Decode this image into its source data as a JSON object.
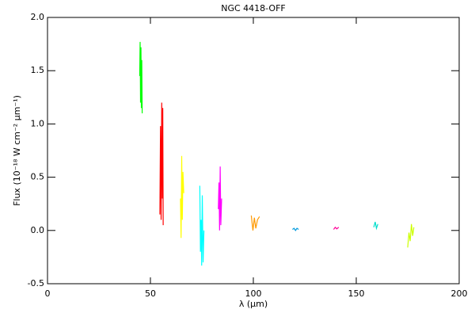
{
  "chart_data": {
    "type": "line",
    "title": "NGC 4418-OFF",
    "xlabel": "λ (μm)",
    "ylabel": "Flux (10⁻¹⁸ W cm⁻² μm⁻¹)",
    "xlim": [
      0,
      200
    ],
    "xticks": [
      0,
      50,
      100,
      150,
      200
    ],
    "ylim": [
      -0.5,
      2.0
    ],
    "yticks": [
      {
        "value": 2.0,
        "label": "2.0"
      },
      1.5,
      {
        "value": 1.0,
        "label": "1.0"
      },
      0.5,
      {
        "value": 0.0,
        "label": "0.0"
      },
      -0.5
    ],
    "series": [
      {
        "color": "#00ff00",
        "x": [
          44.8,
          45.0,
          45.2,
          45.4,
          45.6,
          45.8,
          46.0
        ],
        "values": [
          1.45,
          1.77,
          1.2,
          1.72,
          1.15,
          1.6,
          1.1
        ]
      },
      {
        "color": "#ff0000",
        "x": [
          54.6,
          54.9,
          55.2,
          55.5,
          55.8,
          56.0,
          56.2
        ],
        "values": [
          0.15,
          0.98,
          0.1,
          1.2,
          0.3,
          1.15,
          0.05
        ]
      },
      {
        "color": "#ffff00",
        "x": [
          64.6,
          64.9,
          65.2,
          65.5,
          65.8,
          66.2
        ],
        "values": [
          0.3,
          -0.07,
          0.7,
          0.1,
          0.55,
          0.35
        ]
      },
      {
        "color": "#00ffff",
        "x": [
          74.0,
          74.3,
          74.6,
          74.9,
          75.2,
          75.6,
          76.0
        ],
        "values": [
          0.42,
          -0.2,
          0.1,
          -0.33,
          0.33,
          -0.3,
          0.0
        ]
      },
      {
        "color": "#ff00ff",
        "x": [
          83.0,
          83.3,
          83.6,
          83.9,
          84.2,
          84.6
        ],
        "values": [
          0.2,
          0.45,
          0.0,
          0.6,
          0.05,
          0.3
        ]
      },
      {
        "color": "#ff9900",
        "x": [
          99.0,
          99.8,
          100.5,
          101.2,
          102.0,
          103.0
        ],
        "values": [
          0.14,
          0.0,
          0.12,
          0.02,
          0.1,
          0.13
        ]
      },
      {
        "color": "#0099dd",
        "x": [
          119.0,
          119.8,
          120.5,
          121.2,
          122.0
        ],
        "values": [
          0.01,
          0.02,
          0.0,
          0.02,
          0.01
        ]
      },
      {
        "color": "#ff0099",
        "x": [
          139.0,
          139.8,
          140.5,
          141.5
        ],
        "values": [
          0.01,
          0.03,
          0.015,
          0.03
        ]
      },
      {
        "color": "#00ddcc",
        "x": [
          158.5,
          159.2,
          159.8,
          160.5
        ],
        "values": [
          0.03,
          0.08,
          0.02,
          0.06
        ]
      },
      {
        "color": "#ccff00",
        "x": [
          175.0,
          175.6,
          176.2,
          176.8,
          177.4,
          178.0
        ],
        "values": [
          -0.16,
          -0.02,
          -0.1,
          0.06,
          -0.05,
          0.03
        ]
      }
    ]
  }
}
